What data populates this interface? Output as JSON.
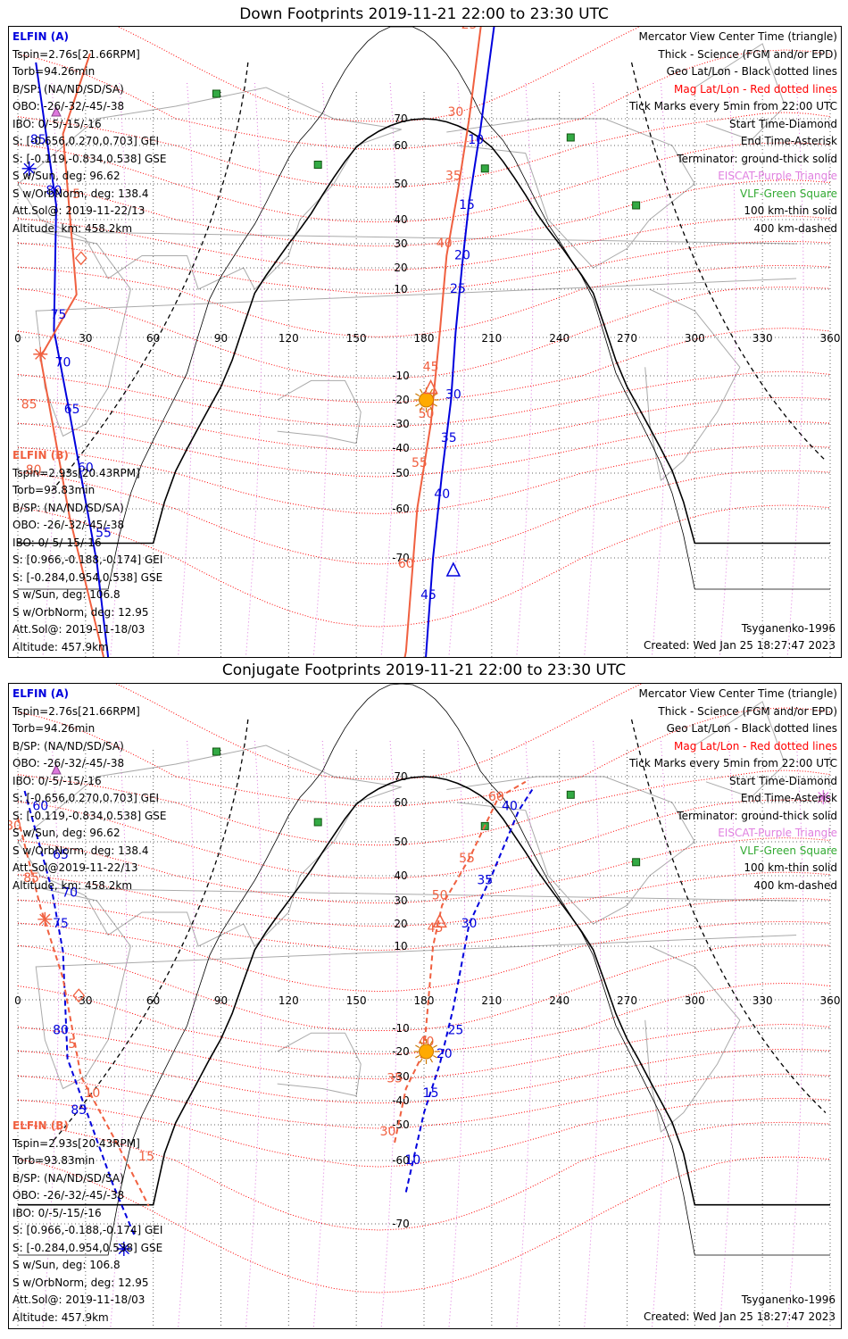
{
  "panels": [
    {
      "title": "Down Footprints 2019-11-21 22:00 to 23:30 UTC",
      "sat_a": {
        "name": "ELFIN (A)",
        "lines": [
          "Tspin=2.76s[21.66RPM]",
          "Torb=94.26min",
          "B/SP: (NA/ND/SD/SA)",
          "OBO: -26/-32/-45/-38",
          "IBO: 0/-5/-15/-16",
          "S: [-0.656,0.270,0.703] GEI",
          "S: [-0.119,-0.834,0.538] GSE",
          "S w/Sun, deg: 96.62",
          "S w/OrbNorm, deg: 138.4",
          "Att.Sol@: 2019-11-22/13",
          "Altitude, km: 458.2km"
        ]
      },
      "sat_b": {
        "name": "ELFIN (B)",
        "lines": [
          "Tspin=2.93s[20.43RPM]",
          "Torb=93.83min",
          "B/SP: (NA/ND/SD/SA)",
          "OBO: -26/-32/-45/-38",
          "IBO: 0/-5/-15/-16",
          "S: [0.966,-0.188,-0.174] GEI",
          "S: [-0.284,0.954,0.538] GSE",
          "S w/Sun, deg: 106.8",
          "S w/OrbNorm, deg: 12.95",
          "Att.Sol@: 2019-11-18/03",
          "Altitude: 457.9km"
        ]
      },
      "model": "Tsyganenko-1996",
      "created": "Created: Wed Jan 25 18:27:47 2023",
      "track_a_labels": [
        {
          "t": "10",
          "lon": 203,
          "lat": 62
        },
        {
          "t": "15",
          "lon": 199,
          "lat": 44
        },
        {
          "t": "20",
          "lon": 197,
          "lat": 25
        },
        {
          "t": "25",
          "lon": 195,
          "lat": 10
        },
        {
          "t": "30",
          "lon": 193,
          "lat": -18
        },
        {
          "t": "35",
          "lon": 191,
          "lat": -36
        },
        {
          "t": "40",
          "lon": 188,
          "lat": -56
        },
        {
          "t": "45",
          "lon": 182,
          "lat": -76
        },
        {
          "t": "55",
          "lon": 38,
          "lat": -65
        },
        {
          "t": "60",
          "lon": 30,
          "lat": -48
        },
        {
          "t": "65",
          "lon": 24,
          "lat": -24
        },
        {
          "t": "70",
          "lon": 20,
          "lat": -7
        },
        {
          "t": "75",
          "lon": 18,
          "lat": 4
        },
        {
          "t": "80",
          "lon": 16,
          "lat": 48
        },
        {
          "t": "85",
          "lon": 9,
          "lat": 62
        }
      ],
      "track_b_labels": [
        {
          "t": "25",
          "lon": 200,
          "lat": 85
        },
        {
          "t": "30",
          "lon": 194,
          "lat": 71
        },
        {
          "t": "35",
          "lon": 193,
          "lat": 52
        },
        {
          "t": "40",
          "lon": 189,
          "lat": 30
        },
        {
          "t": "45",
          "lon": 183,
          "lat": -8
        },
        {
          "t": "50",
          "lon": 181,
          "lat": -26
        },
        {
          "t": "55",
          "lon": 178,
          "lat": -46
        },
        {
          "t": "60",
          "lon": 172,
          "lat": -71
        },
        {
          "t": "80",
          "lon": 7,
          "lat": -49
        },
        {
          "t": "85",
          "lon": 5,
          "lat": -22
        },
        {
          "t": "5",
          "lon": 26,
          "lat": 47
        }
      ]
    },
    {
      "title": "Conjugate Footprints 2019-11-21 22:00 to 23:30 UTC",
      "sat_a": {
        "name": "ELFIN (A)",
        "lines": [
          "Tspin=2.76s[21.66RPM]",
          "Torb=94.26min",
          "B/SP: (NA/ND/SD/SA)",
          "OBO: -26/-32/-45/-38",
          "IBO: 0/-5/-15/-16",
          "S: [-0.656,0.270,0.703] GEI",
          "S: [-0.119,-0.834,0.538] GSE",
          "S w/Sun, deg: 96.62",
          "S w/OrbNorm, deg: 138.4",
          "Att.Sol@2019-11-22/13",
          "Altitude, km: 458.2km"
        ]
      },
      "sat_b": {
        "name": "ELFIN (B)",
        "lines": [
          "Tspin=2.93s[20.43RPM]",
          "Torb=93.83min",
          "B/SP: (NA/ND/SD/SA)",
          "OBO: -26/-32/-45/-38",
          "IBO: 0/-5/-15/-16",
          "S: [0.966,-0.188,-0.174] GEI",
          "S: [-0.284,0.954,0.538] GSE",
          "S w/Sun, deg: 106.8",
          "S w/OrbNorm, deg: 12.95",
          "Att.Sol@: 2019-11-18/03",
          "Altitude: 457.9km"
        ]
      },
      "model": "Tsyganenko-1996",
      "created": "Created: Wed Jan 25 18:27:47 2023",
      "track_a_labels": [
        {
          "t": "10",
          "lon": 175,
          "lat": -60
        },
        {
          "t": "15",
          "lon": 183,
          "lat": -37
        },
        {
          "t": "20",
          "lon": 189,
          "lat": -21
        },
        {
          "t": "25",
          "lon": 194,
          "lat": -11
        },
        {
          "t": "30",
          "lon": 200,
          "lat": 20
        },
        {
          "t": "35",
          "lon": 207,
          "lat": 38
        },
        {
          "t": "40",
          "lon": 218,
          "lat": 59
        },
        {
          "t": "60",
          "lon": 10,
          "lat": 59
        },
        {
          "t": "65",
          "lon": 19,
          "lat": 46
        },
        {
          "t": "70",
          "lon": 23,
          "lat": 33
        },
        {
          "t": "75",
          "lon": 19,
          "lat": 20
        },
        {
          "t": "80",
          "lon": 19,
          "lat": -11
        },
        {
          "t": "85",
          "lon": 27,
          "lat": -44
        }
      ],
      "track_b_labels": [
        {
          "t": "30",
          "lon": 164,
          "lat": -52
        },
        {
          "t": "35",
          "lon": 167,
          "lat": -31
        },
        {
          "t": "40",
          "lon": 181,
          "lat": -16
        },
        {
          "t": "45",
          "lon": 185,
          "lat": 18
        },
        {
          "t": "50",
          "lon": 187,
          "lat": 32
        },
        {
          "t": "55",
          "lon": 199,
          "lat": 45
        },
        {
          "t": "60",
          "lon": 212,
          "lat": 62
        },
        {
          "t": "80",
          "lon": -2,
          "lat": 54
        },
        {
          "t": "85",
          "lon": 6,
          "lat": 39
        },
        {
          "t": "5",
          "lon": 24,
          "lat": -17
        },
        {
          "t": "10",
          "lon": 33,
          "lat": -37
        },
        {
          "t": "15",
          "lon": 57,
          "lat": -59
        }
      ]
    }
  ],
  "legend": [
    {
      "text": "Mercator View Center Time (triangle)",
      "color": "#000000"
    },
    {
      "text": "Thick - Science (FGM and/or EPD)",
      "color": "#000000"
    },
    {
      "text": "Geo Lat/Lon - Black dotted lines",
      "color": "#000000"
    },
    {
      "text": "Mag Lat/Lon - Red dotted lines",
      "color": "#ff0000"
    },
    {
      "text": "Tick Marks every 5min from 22:00 UTC",
      "color": "#000000"
    },
    {
      "text": "Start Time-Diamond",
      "color": "#000000"
    },
    {
      "text": "End Time-Asterisk",
      "color": "#000000"
    },
    {
      "text": "Terminator: ground-thick solid",
      "color": "#000000"
    },
    {
      "text": "EISCAT-Purple Triangle",
      "color": "#e080e0"
    },
    {
      "text": "VLF-Green Square",
      "color": "#33aa33"
    },
    {
      "text": "100 km-thin solid",
      "color": "#000000"
    },
    {
      "text": "400 km-dashed",
      "color": "#000000"
    }
  ],
  "lon_ticks": [
    "0",
    "30",
    "60",
    "90",
    "120",
    "150",
    "180",
    "210",
    "240",
    "270",
    "300",
    "330",
    "360"
  ],
  "lat_ticks": [
    "70",
    "60",
    "50",
    "40",
    "30",
    "20",
    "10",
    "-10",
    "-20",
    "-30",
    "-40",
    "-50",
    "-60",
    "-70"
  ],
  "colors": {
    "sat_a": "#0000dd",
    "sat_b": "#f06040",
    "mag_grid": "#ff0000",
    "geo_grid": "#000000",
    "eiscat": "#dd77dd",
    "vlf": "#33aa44",
    "sun": "#ffaa00",
    "land": "#aaaaaa"
  }
}
